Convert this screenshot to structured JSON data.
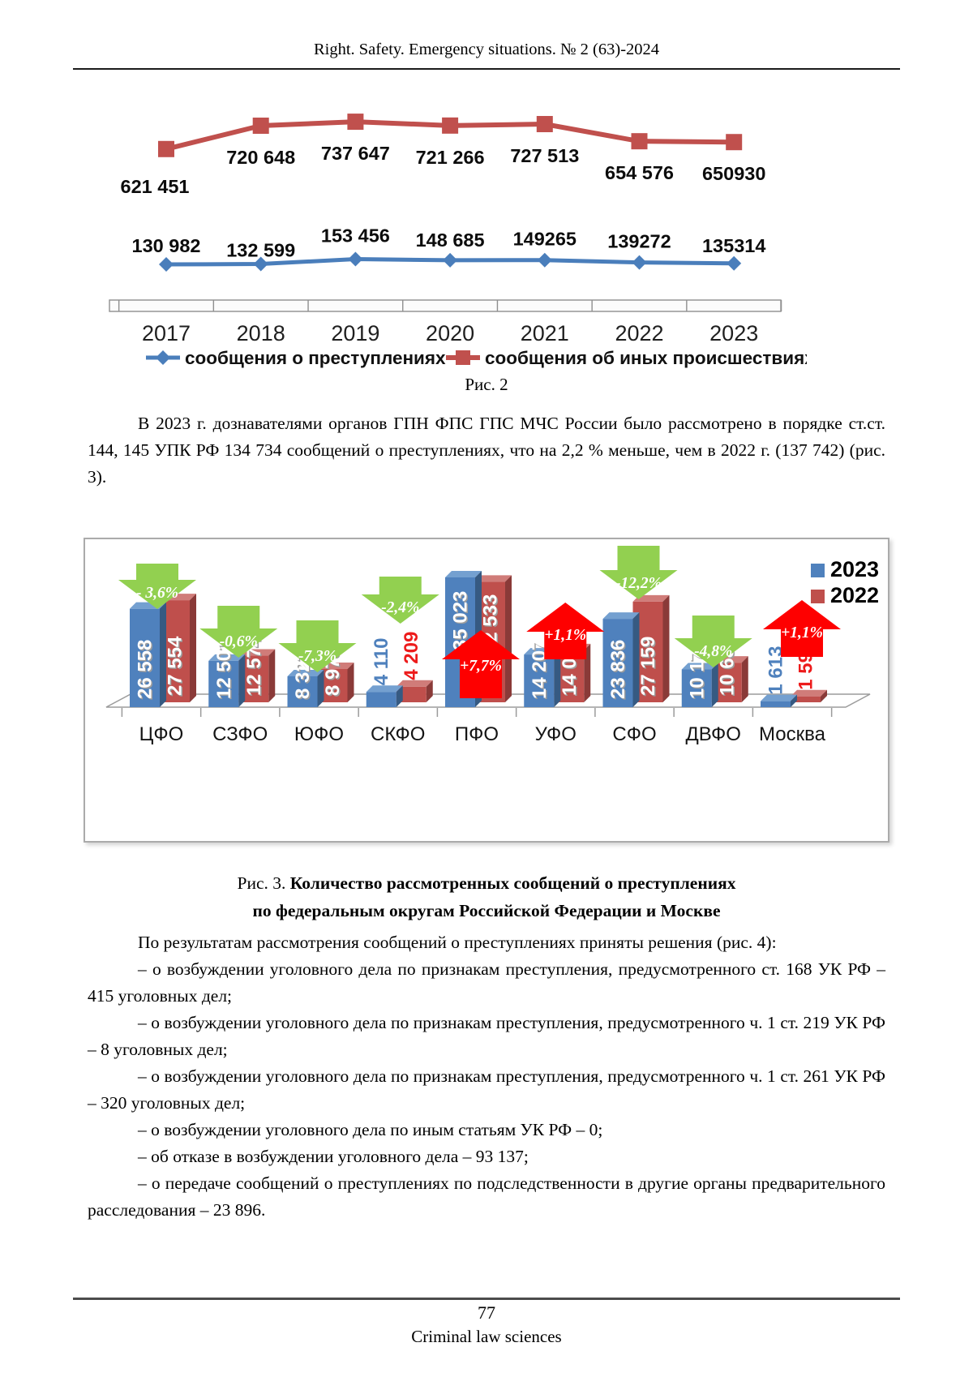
{
  "header": {
    "journal_title": "Right. Safety. Emergency situations. № 2 (63)-2024"
  },
  "fig2": {
    "caption": "Рис. 2"
  },
  "fig3": {
    "caption_prefix": "Рис. 3. ",
    "caption_bold_line1": "Количество рассмотренных сообщений о преступлениях",
    "caption_bold_line2": "по федеральным округам Российской Федерации и Москве"
  },
  "body": {
    "p_intro": "В 2023 г. дознавателями органов ГПН ФПС ГПС МЧС России было рассмотрено в порядке ст.ст. 144, 145 УПК РФ 134 734 сообщений о преступлениях, что на 2,2 % меньше, чем в 2022 г. (137 742) (рис. 3).",
    "p_results": "По результатам рассмотрения сообщений о преступлениях приняты решения (рис. 4):",
    "items": [
      "– о возбуждении уголовного дела по признакам преступления, предусмотренного ст. 168 УК РФ – 415 уголовных дел;",
      "– о возбуждении уголовного дела по признакам преступления, предусмотренного ч. 1 ст. 219 УК РФ – 8 уголовных дел;",
      "– о возбуждении уголовного дела по признакам преступления, предусмотренного ч. 1 ст. 261 УК РФ – 320 уголовных дел;",
      "– о возбуждении уголовного дела по иным статьям УК РФ – 0;",
      "– об отказе в возбуждении уголовного дела – 93 137;",
      "– о передаче сообщений о преступлениях по подследственности в другие органы предварительного расследования – 23 896."
    ]
  },
  "footer": {
    "page_number": "77",
    "section": "Criminal law sciences"
  },
  "chart_data": [
    {
      "id": "fig2-line-chart",
      "type": "line",
      "x": [
        "2017",
        "2018",
        "2019",
        "2020",
        "2021",
        "2022",
        "2023"
      ],
      "series": [
        {
          "name": "сообщения о преступлениях",
          "color": "#4a7ebb",
          "marker": "diamond",
          "values": [
            130982,
            132599,
            153456,
            148685,
            149265,
            139272,
            135314
          ],
          "labels": [
            "130 982",
            "132 599",
            "153 456",
            "148 685",
            "149265",
            "139272",
            "135314"
          ]
        },
        {
          "name": "сообщения об иных происшествиях",
          "color": "#c0504d",
          "marker": "square",
          "values": [
            621451,
            720648,
            737647,
            721266,
            727513,
            654576,
            650930
          ],
          "labels": [
            "621 451",
            "720 648",
            "737 647",
            "721 266",
            "727 513",
            "654 576",
            "650930"
          ]
        }
      ],
      "grid": false,
      "legend_position": "bottom"
    },
    {
      "id": "fig3-bar-chart",
      "type": "bar",
      "categories": [
        "ЦФО",
        "СЗФО",
        "ЮФО",
        "СКФО",
        "ПФО",
        "УФО",
        "СФО",
        "ДВФО",
        "Москва"
      ],
      "series": [
        {
          "name": "2023",
          "color": "#4f81bd",
          "values": [
            26558,
            12501,
            8323,
            4110,
            35023,
            14207,
            23836,
            10176,
            1613
          ],
          "labels": [
            "26 558",
            "12 501",
            "8 323",
            "4 110",
            "35 023",
            "14 207",
            "23 836",
            "10 176",
            "1 613"
          ]
        },
        {
          "name": "2022",
          "color": "#bf4f4c",
          "values": [
            27554,
            12574,
            8978,
            4209,
            32533,
            14047,
            27159,
            10688,
            1595
          ],
          "labels": [
            "27 554",
            "12 574",
            "8 978",
            "4 209",
            "32 533",
            "14 047",
            "27 159",
            "10 688",
            "1 595"
          ]
        }
      ],
      "legend_position": "top-right",
      "outside_label_categories": [
        "СКФО",
        "Москва"
      ],
      "change_arrows": [
        {
          "category": "ЦФО",
          "label": "- 3,6%",
          "direction": "down",
          "color": "#92d050"
        },
        {
          "category": "СЗФО",
          "label": "-0,6%",
          "direction": "down",
          "color": "#92d050"
        },
        {
          "category": "ЮФО",
          "label": "-7,3%",
          "direction": "down",
          "color": "#92d050"
        },
        {
          "category": "СКФО",
          "label": "-2,4%",
          "direction": "down",
          "color": "#92d050"
        },
        {
          "category": "ПФО",
          "label": "+7,7%",
          "direction": "up",
          "color": "#fe0000"
        },
        {
          "category": "УФО",
          "label": "+1,1%",
          "direction": "up",
          "color": "#fe0000"
        },
        {
          "category": "СФО",
          "label": "-12,2%",
          "direction": "down",
          "color": "#92d050"
        },
        {
          "category": "ДВФО",
          "label": "-4,8%",
          "direction": "down",
          "color": "#92d050"
        },
        {
          "category": "Москва",
          "label": "+1,1%",
          "direction": "up",
          "color": "#fe0000"
        }
      ]
    }
  ]
}
